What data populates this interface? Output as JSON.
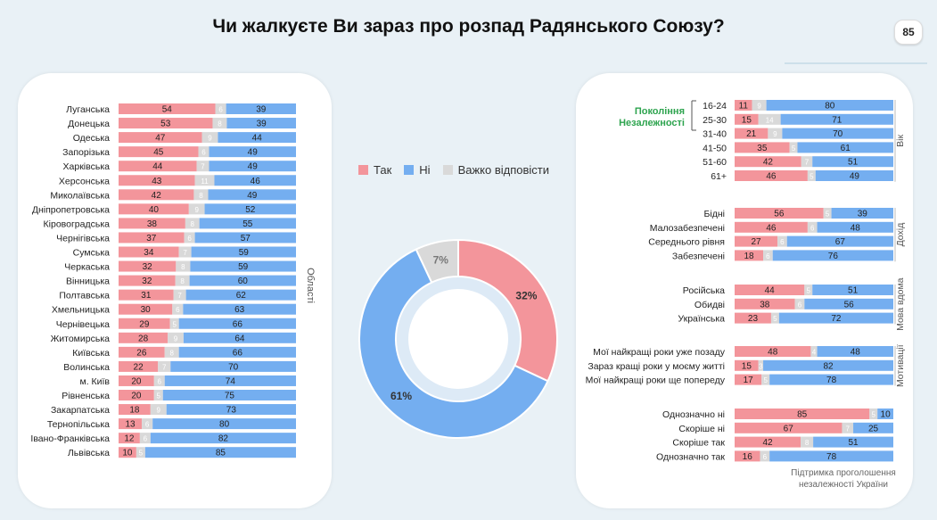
{
  "title": "Чи жалкуєте Ви зараз про розпад Радянського Союзу?",
  "page_number": "85",
  "colors": {
    "yes": "#f3959b",
    "no": "#74aef0",
    "hard": "#d9d9d9"
  },
  "legend": {
    "yes": "Так",
    "no": "Ні",
    "hard": "Важко відповісти"
  },
  "chart_data": [
    {
      "type": "bar",
      "stacked": true,
      "orientation": "horizontal",
      "group_label": "Області",
      "series_keys": [
        "Так",
        "Важко відповісти",
        "Ні"
      ],
      "categories": [
        "Луганська",
        "Донецька",
        "Одеська",
        "Запорізька",
        "Харківська",
        "Херсонська",
        "Миколаївська",
        "Дніпропетровська",
        "Кіровоградська",
        "Чернігівська",
        "Сумська",
        "Черкаська",
        "Вінницька",
        "Полтавська",
        "Хмельницька",
        "Чернівецька",
        "Житомирська",
        "Київська",
        "Волинська",
        "м. Київ",
        "Рівненська",
        "Закарпатська",
        "Тернопільська",
        "Івано-Франківська",
        "Львівська"
      ],
      "yes": [
        54,
        53,
        47,
        45,
        44,
        43,
        42,
        40,
        38,
        37,
        34,
        32,
        32,
        31,
        30,
        29,
        28,
        26,
        22,
        20,
        20,
        18,
        13,
        12,
        10
      ],
      "hard": [
        6,
        8,
        9,
        6,
        7,
        11,
        8,
        9,
        8,
        6,
        7,
        8,
        8,
        7,
        6,
        5,
        9,
        8,
        7,
        6,
        5,
        9,
        6,
        6,
        5
      ],
      "no": [
        39,
        39,
        44,
        49,
        49,
        46,
        49,
        52,
        55,
        57,
        59,
        59,
        60,
        62,
        63,
        66,
        64,
        66,
        70,
        74,
        75,
        73,
        80,
        82,
        85
      ]
    },
    {
      "type": "pie",
      "donut": true,
      "slices": [
        {
          "name": "Так",
          "value": 32,
          "label": "32%"
        },
        {
          "name": "Ні",
          "value": 61,
          "label": "61%"
        },
        {
          "name": "Важко відповісти",
          "value": 7,
          "label": "7%"
        }
      ]
    },
    {
      "type": "bar",
      "stacked": true,
      "orientation": "horizontal",
      "series_keys": [
        "Так",
        "Важко відповісти",
        "Ні"
      ],
      "annotation": "Покоління Незалежності",
      "footnote": "Підтримка проголошення незалежності України",
      "groups": [
        {
          "label": "Вік",
          "categories": [
            "16-24",
            "25-30",
            "31-40",
            "41-50",
            "51-60",
            "61+"
          ],
          "yes": [
            11,
            15,
            21,
            35,
            42,
            46
          ],
          "hard": [
            9,
            14,
            9,
            5,
            7,
            5
          ],
          "no": [
            80,
            71,
            70,
            61,
            51,
            49
          ]
        },
        {
          "label": "Дохід",
          "categories": [
            "Бідні",
            "Малозабезпечені",
            "Середнього рівня",
            "Забезпечені"
          ],
          "yes": [
            56,
            46,
            27,
            18
          ],
          "hard": [
            5,
            6,
            6,
            6
          ],
          "no": [
            39,
            48,
            67,
            76
          ]
        },
        {
          "label": "Мова вдома",
          "categories": [
            "Російська",
            "Обидві",
            "Українська"
          ],
          "yes": [
            44,
            38,
            23
          ],
          "hard": [
            5,
            6,
            5
          ],
          "no": [
            51,
            56,
            72
          ]
        },
        {
          "label": "Мотивації",
          "categories": [
            "Мої найкращі роки уже позаду",
            "Зараз кращі роки у моєму житті",
            "Мої найкращі роки ще попереду"
          ],
          "yes": [
            48,
            15,
            17
          ],
          "hard": [
            4,
            3,
            5
          ],
          "no": [
            48,
            82,
            78
          ]
        },
        {
          "label": "",
          "categories": [
            "Однозначно ні",
            "Скоріше ні",
            "Скоріше так",
            "Однозначно так"
          ],
          "yes": [
            85,
            67,
            42,
            16
          ],
          "hard": [
            5,
            7,
            8,
            6
          ],
          "no": [
            10,
            25,
            51,
            78
          ]
        }
      ]
    }
  ]
}
